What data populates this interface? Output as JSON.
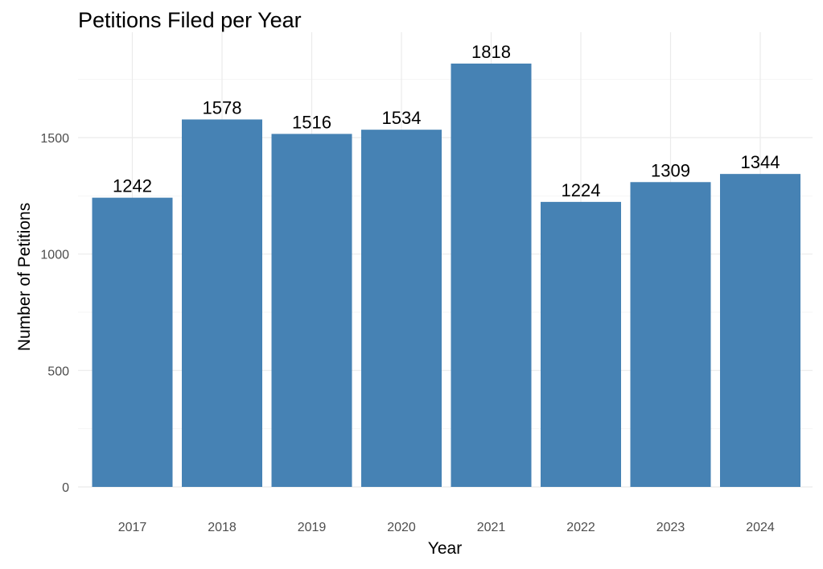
{
  "chart_data": {
    "type": "bar",
    "title": "Petitions Filed per Year",
    "xlabel": "Year",
    "ylabel": "Number of Petitions",
    "categories": [
      "2017",
      "2018",
      "2019",
      "2020",
      "2021",
      "2022",
      "2023",
      "2024"
    ],
    "values": [
      1242,
      1578,
      1516,
      1534,
      1818,
      1224,
      1309,
      1344
    ],
    "data_labels": [
      "1242",
      "1578",
      "1516",
      "1534",
      "1818",
      "1224",
      "1309",
      "1344"
    ],
    "y_ticks": [
      0,
      500,
      1000,
      1500
    ],
    "y_tick_labels": [
      "0",
      "500",
      "1000",
      "1500"
    ],
    "ylim": [
      0,
      1818
    ],
    "grid": true,
    "legend": "none",
    "bar_color": "#4682b4"
  }
}
